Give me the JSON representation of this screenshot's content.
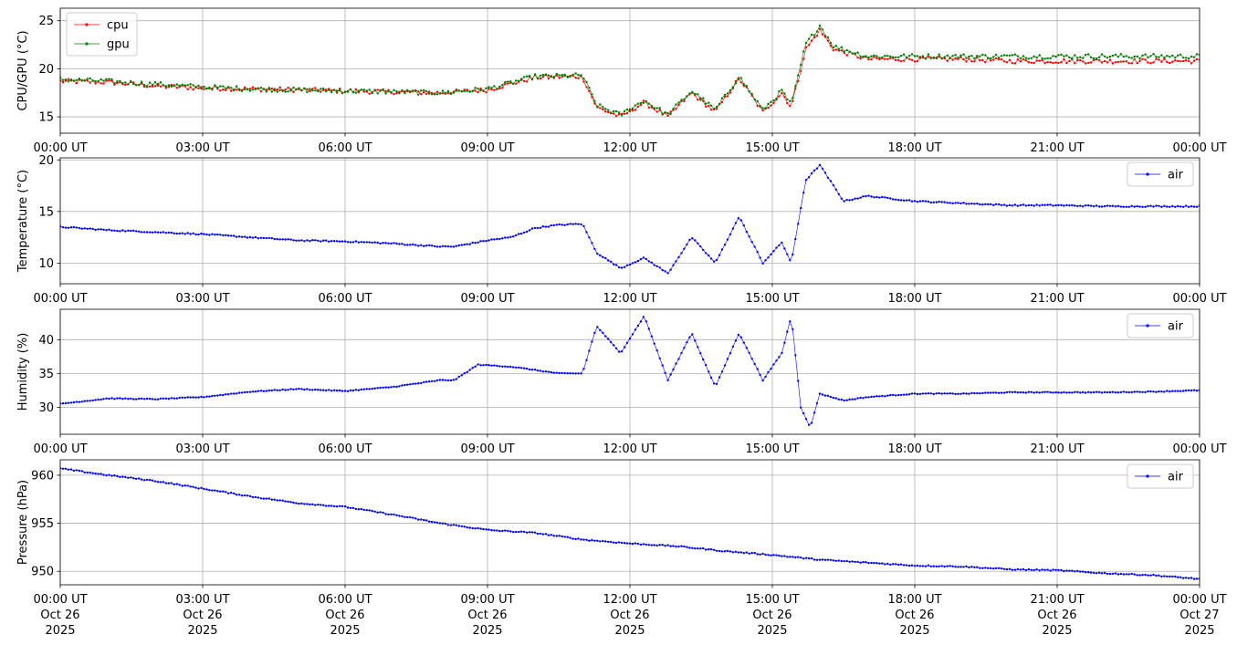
{
  "chart_data": [
    {
      "type": "line",
      "ylabel": "CPU/GPU (°C)",
      "ylim": [
        13.3,
        26.3
      ],
      "yticks": [
        15,
        20,
        25
      ],
      "xlim": [
        "2025-10-26 00:00",
        "2025-10-27 00:00"
      ],
      "xtick_labels": [
        "00:00 UT",
        "03:00 UT",
        "06:00 UT",
        "09:00 UT",
        "12:00 UT",
        "15:00 UT",
        "18:00 UT",
        "21:00 UT",
        "00:00 UT"
      ],
      "grid": true,
      "legend": "upper left",
      "series": [
        {
          "name": "cpu",
          "color": "#ff0000",
          "x_hours": [
            0,
            1,
            2,
            3,
            4,
            5,
            6,
            7,
            8,
            9,
            10,
            11,
            11.3,
            11.8,
            12.3,
            12.8,
            13.3,
            13.8,
            14.3,
            14.8,
            15.2,
            15.4,
            15.7,
            16.0,
            16.3,
            17.0,
            18.0,
            19.0,
            20.0,
            21.0,
            22.0,
            23.0,
            24.0
          ],
          "values": [
            18.7,
            18.6,
            18.2,
            18.0,
            17.9,
            17.8,
            17.7,
            17.6,
            17.5,
            17.8,
            19.1,
            19.2,
            16.0,
            15.0,
            16.5,
            15.0,
            17.5,
            15.5,
            19.0,
            15.5,
            17.5,
            16.0,
            22.0,
            24.0,
            22.0,
            21.0,
            21.0,
            21.0,
            20.8,
            20.8,
            20.8,
            20.8,
            20.8
          ]
        },
        {
          "name": "gpu",
          "color": "#008000",
          "x_hours": [
            0,
            1,
            2,
            3,
            4,
            5,
            6,
            7,
            8,
            9,
            10,
            11,
            11.3,
            11.8,
            12.3,
            12.8,
            13.3,
            13.8,
            14.3,
            14.8,
            15.2,
            15.4,
            15.7,
            16.0,
            16.3,
            17.0,
            18.0,
            19.0,
            20.0,
            21.0,
            22.0,
            23.0,
            24.0
          ],
          "values": [
            18.9,
            18.7,
            18.4,
            18.1,
            17.9,
            17.8,
            17.7,
            17.6,
            17.5,
            17.9,
            19.2,
            19.3,
            16.2,
            15.2,
            16.7,
            15.2,
            17.7,
            15.7,
            19.2,
            15.7,
            17.7,
            16.2,
            22.5,
            24.5,
            22.3,
            21.3,
            21.3,
            21.3,
            21.3,
            21.3,
            21.3,
            21.3,
            21.3
          ]
        }
      ]
    },
    {
      "type": "line",
      "ylabel": "Temperature (°C)",
      "ylim": [
        8.0,
        20.2
      ],
      "yticks": [
        10,
        15,
        20
      ],
      "xlim": [
        "2025-10-26 00:00",
        "2025-10-27 00:00"
      ],
      "xtick_labels": [
        "00:00 UT",
        "03:00 UT",
        "06:00 UT",
        "09:00 UT",
        "12:00 UT",
        "15:00 UT",
        "18:00 UT",
        "21:00 UT",
        "00:00 UT"
      ],
      "grid": true,
      "legend": "upper right",
      "series": [
        {
          "name": "air",
          "color": "#0000ff",
          "x_hours": [
            0,
            1,
            2,
            3,
            4,
            5,
            6,
            7,
            8,
            8.3,
            9,
            9.5,
            10,
            10.5,
            11,
            11.3,
            11.8,
            12.3,
            12.8,
            13.3,
            13.8,
            14.3,
            14.8,
            15.2,
            15.4,
            15.7,
            16.0,
            16.5,
            17.0,
            18.0,
            19.0,
            20.0,
            21.0,
            22.0,
            23.0,
            24.0
          ],
          "values": [
            13.5,
            13.2,
            13.0,
            12.8,
            12.5,
            12.2,
            12.1,
            11.9,
            11.6,
            11.6,
            12.2,
            12.5,
            13.4,
            13.7,
            13.8,
            11.0,
            9.5,
            10.5,
            9.0,
            12.5,
            10.0,
            14.5,
            10.0,
            12.0,
            10.0,
            18.0,
            19.5,
            16.0,
            16.5,
            16.0,
            15.8,
            15.6,
            15.6,
            15.5,
            15.5,
            15.5
          ]
        }
      ]
    },
    {
      "type": "line",
      "ylabel": "Humidity (%)",
      "ylim": [
        26.0,
        44.5
      ],
      "yticks": [
        30,
        35,
        40
      ],
      "xlim": [
        "2025-10-26 00:00",
        "2025-10-27 00:00"
      ],
      "xtick_labels": [
        "00:00 UT",
        "03:00 UT",
        "06:00 UT",
        "09:00 UT",
        "12:00 UT",
        "15:00 UT",
        "18:00 UT",
        "21:00 UT",
        "00:00 UT"
      ],
      "grid": true,
      "legend": "upper right",
      "series": [
        {
          "name": "air",
          "color": "#0000ff",
          "x_hours": [
            0,
            1,
            2,
            3,
            4,
            5,
            6,
            7,
            8,
            8.3,
            8.8,
            9.5,
            10.0,
            10.5,
            11.0,
            11.3,
            11.8,
            12.3,
            12.8,
            13.3,
            13.8,
            14.3,
            14.8,
            15.2,
            15.4,
            15.6,
            15.8,
            16.0,
            16.5,
            17.0,
            18.0,
            19.0,
            20.0,
            21.0,
            22.0,
            23.0,
            24.0
          ],
          "values": [
            30.5,
            31.3,
            31.2,
            31.5,
            32.3,
            32.7,
            32.4,
            33.0,
            34.0,
            34.0,
            36.3,
            36.0,
            35.5,
            35.0,
            35.0,
            42.0,
            38.0,
            43.5,
            34.0,
            41.0,
            33.0,
            41.0,
            34.0,
            38.0,
            43.5,
            30.0,
            27.0,
            32.0,
            31.0,
            31.5,
            32.0,
            32.0,
            32.2,
            32.2,
            32.2,
            32.3,
            32.5
          ]
        }
      ]
    },
    {
      "type": "line",
      "ylabel": "Pressure (hPa)",
      "ylim": [
        948.6,
        961.6
      ],
      "yticks": [
        950,
        955,
        960
      ],
      "xlim": [
        "2025-10-26 00:00",
        "2025-10-27 00:00"
      ],
      "xtick_labels": [
        "00:00 UT",
        "03:00 UT",
        "06:00 UT",
        "09:00 UT",
        "12:00 UT",
        "15:00 UT",
        "18:00 UT",
        "21:00 UT",
        "00:00 UT"
      ],
      "xtick_dates": [
        "Oct 26",
        "Oct 26",
        "Oct 26",
        "Oct 26",
        "Oct 26",
        "Oct 26",
        "Oct 26",
        "Oct 26",
        "Oct 27"
      ],
      "xtick_years": [
        "2025",
        "2025",
        "2025",
        "2025",
        "2025",
        "2025",
        "2025",
        "2025",
        "2025"
      ],
      "grid": true,
      "legend": "upper right",
      "series": [
        {
          "name": "air",
          "color": "#0000ff",
          "x_hours": [
            0,
            1,
            2,
            3,
            4,
            5,
            6,
            7,
            8,
            9,
            10,
            11,
            12,
            13,
            14,
            15,
            16,
            17,
            18,
            19,
            20,
            21,
            22,
            23,
            24
          ],
          "values": [
            960.7,
            960.0,
            959.4,
            958.6,
            957.8,
            957.1,
            956.7,
            955.9,
            955.0,
            954.3,
            954.0,
            953.3,
            952.9,
            952.6,
            952.1,
            951.7,
            951.2,
            950.9,
            950.6,
            950.5,
            950.2,
            950.1,
            949.8,
            949.6,
            949.2
          ]
        }
      ]
    }
  ]
}
